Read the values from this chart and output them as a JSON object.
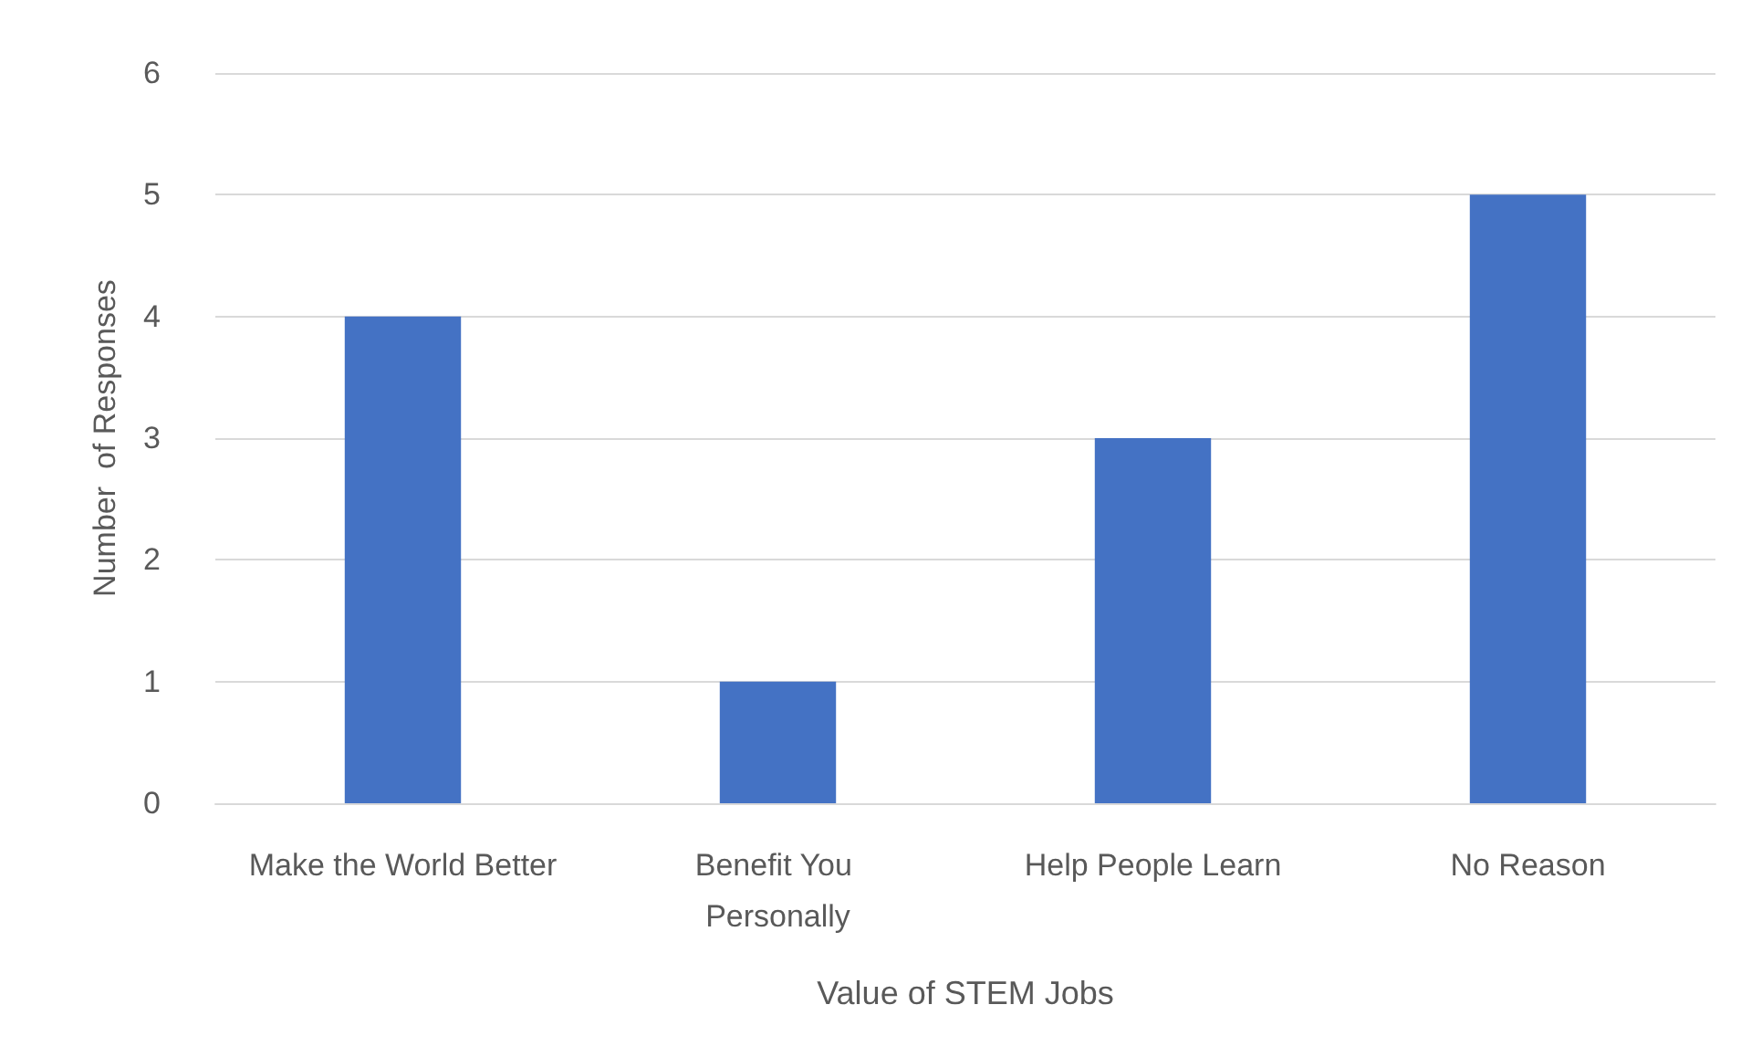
{
  "chart_data": {
    "type": "bar",
    "xlabel": "Value of STEM Jobs",
    "ylabel": "Number  of Responses",
    "categories": [
      "Make the World Better",
      "Benefit You Personally",
      "Help People Learn",
      "No Reason"
    ],
    "values": [
      4,
      1,
      3,
      5
    ],
    "color": "#4472c4",
    "ylim": [
      0,
      6
    ],
    "yticks": [
      0,
      1,
      2,
      3,
      4,
      5,
      6
    ],
    "grid": "y"
  }
}
